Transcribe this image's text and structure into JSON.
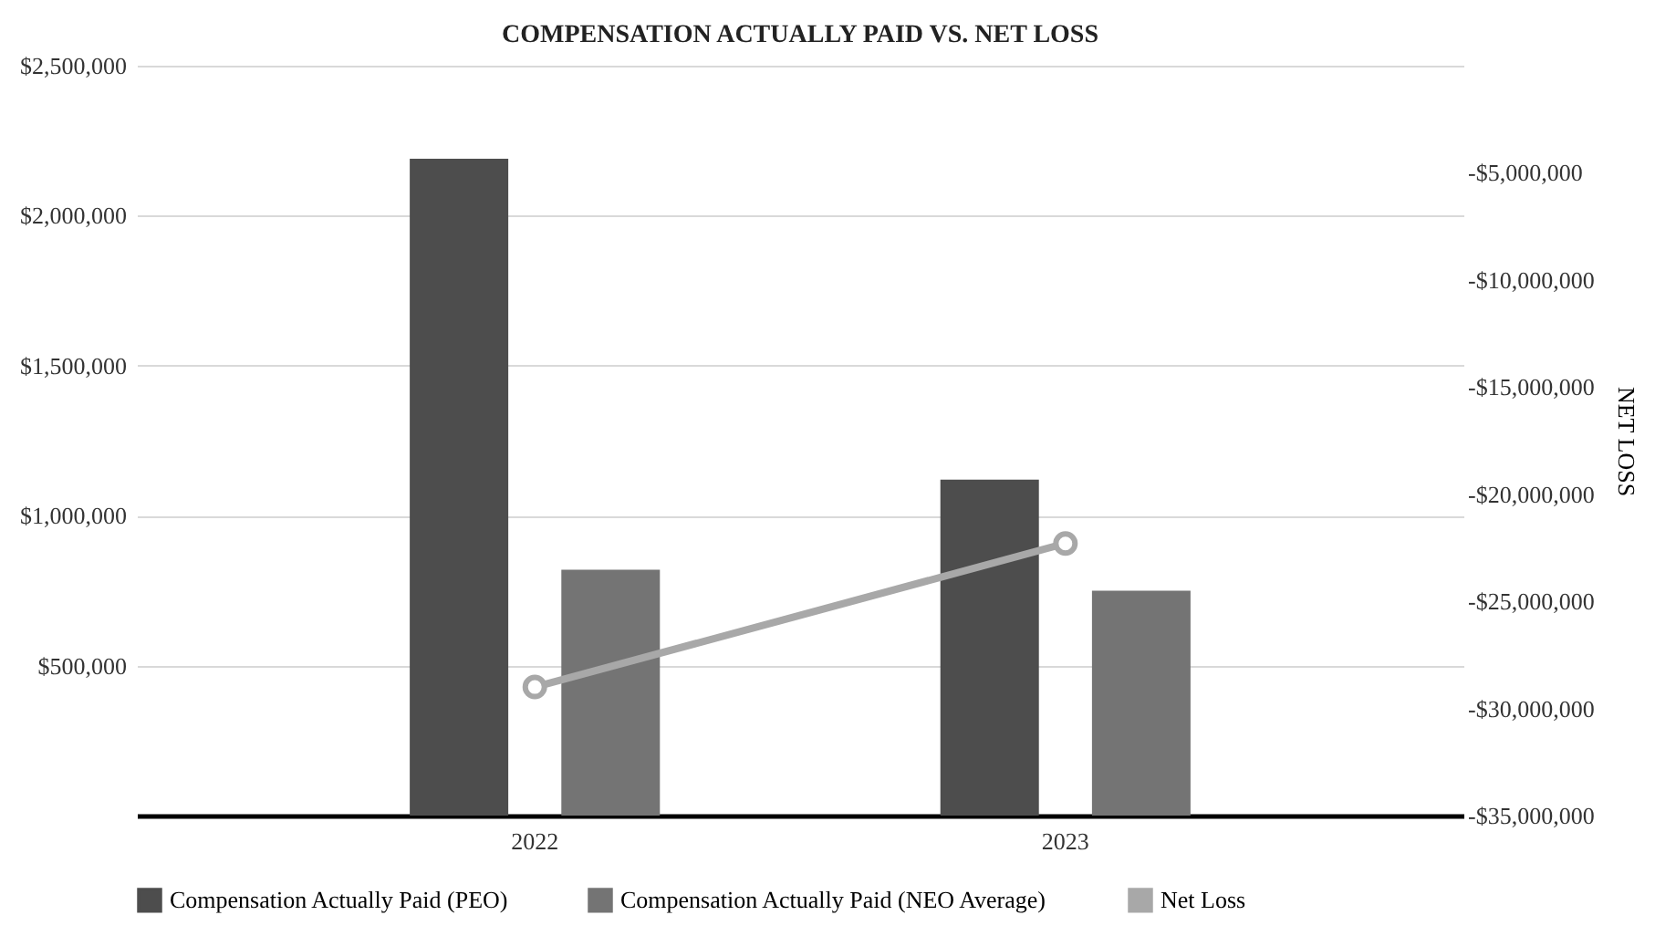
{
  "chart_data": {
    "type": "bar",
    "title": "COMPENSATION ACTUALLY PAID VS. NET LOSS",
    "y2label": "NET LOSS",
    "categories": [
      "2022",
      "2023"
    ],
    "series": [
      {
        "name": "Compensation Actually Paid (PEO)",
        "color": "#4d4d4d",
        "values": [
          2190000,
          1120000
        ]
      },
      {
        "name": "Compensation Actually Paid (NEO Average)",
        "color": "#747474",
        "values": [
          820000,
          750000
        ]
      },
      {
        "name": "Net Loss",
        "type": "line",
        "axis": "y2",
        "color": "#a8a8a8",
        "values": [
          -29000000,
          -22300000
        ]
      }
    ],
    "ylim": [
      0,
      2500000
    ],
    "yticks": [
      {
        "value": 500000,
        "label": "$500,000"
      },
      {
        "value": 1000000,
        "label": "$1,000,000"
      },
      {
        "value": 1500000,
        "label": "$1,500,000"
      },
      {
        "value": 2000000,
        "label": "$2,000,000"
      },
      {
        "value": 2500000,
        "label": "$2,500,000"
      }
    ],
    "y2lim": [
      -35000000,
      0
    ],
    "y2ticks": [
      {
        "value": -35000000,
        "label": "-$35,000,000"
      },
      {
        "value": -30000000,
        "label": "-$30,000,000"
      },
      {
        "value": -25000000,
        "label": "-$25,000,000"
      },
      {
        "value": -20000000,
        "label": "-$20,000,000"
      },
      {
        "value": -15000000,
        "label": "-$15,000,000"
      },
      {
        "value": -10000000,
        "label": "-$10,000,000"
      },
      {
        "value": -5000000,
        "label": "-$5,000,000"
      }
    ],
    "grid": "y",
    "legend": "bottom",
    "marker": "circle",
    "line_style": "solid"
  }
}
